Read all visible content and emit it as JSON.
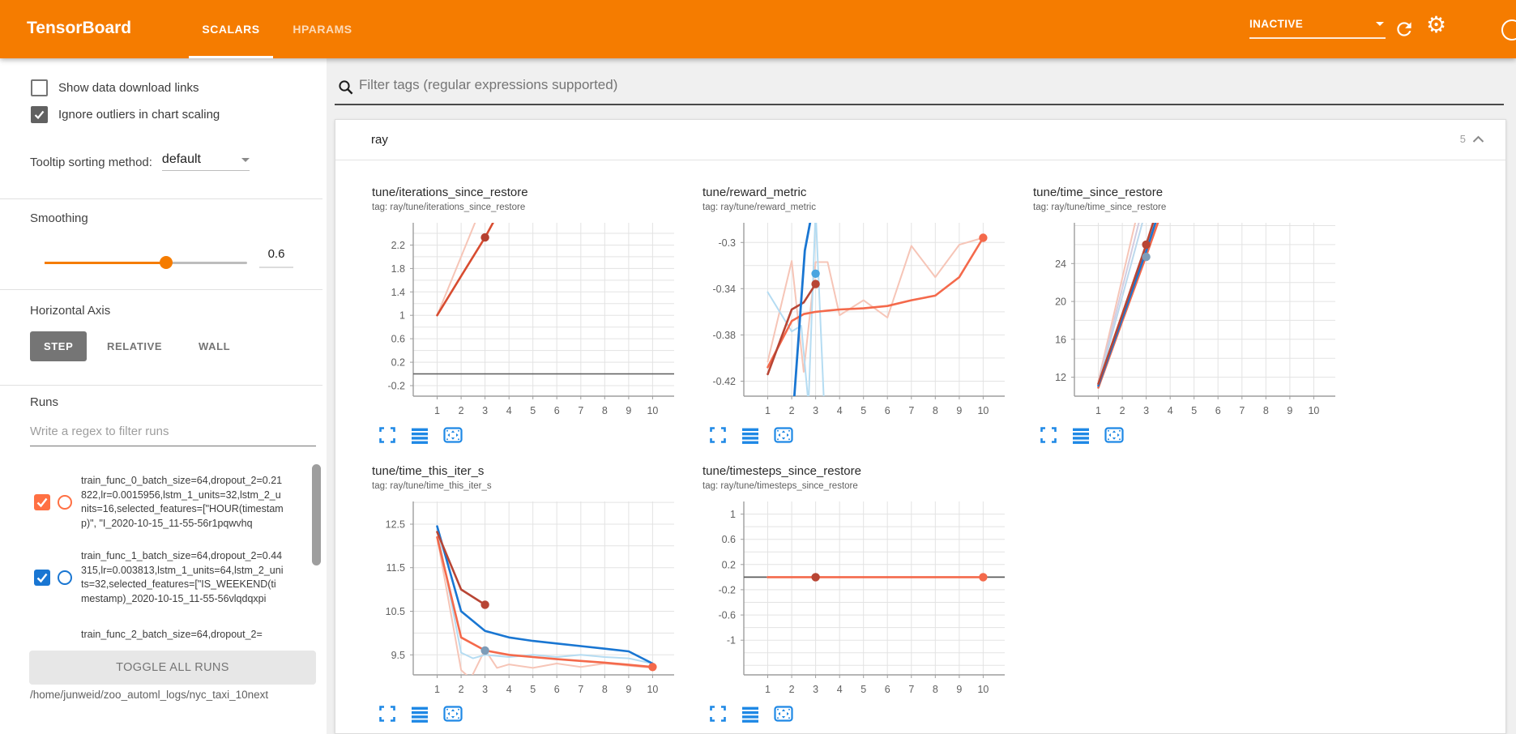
{
  "header": {
    "title": "TensorBoard",
    "tabs": [
      {
        "label": "SCALARS",
        "active": true
      },
      {
        "label": "HPARAMS",
        "active": false
      }
    ],
    "status": "INACTIVE"
  },
  "icons": {
    "gear": "⚙",
    "search": "magnifier-icon",
    "refresh": "circular-arrow-icon",
    "help": "question-circle-icon",
    "dropdown": "caret-down-icon",
    "collapse": "chevron-up-icon",
    "chart_toolbar": [
      "fullscreen-corners-icon",
      "horizontal-bars-icon",
      "fit-to-data-icon"
    ]
  },
  "colors": {
    "header_bg": "#f57c00",
    "accent_orange": "#f57c00",
    "run_orange": "#ff7043",
    "run_blue": "#1976d2",
    "toolbar_icon_blue": "#1e88e5",
    "step_button_bg": "#757575"
  },
  "sidebar": {
    "checkboxes": [
      {
        "label": "Show data download links",
        "checked": false
      },
      {
        "label": "Ignore outliers in chart scaling",
        "checked": true
      }
    ],
    "tooltip_sort": {
      "label": "Tooltip sorting method:",
      "value": "default"
    },
    "smoothing": {
      "label": "Smoothing",
      "value": "0.6"
    },
    "horizontal_axis": {
      "label": "Horizontal Axis",
      "options": [
        "STEP",
        "RELATIVE",
        "WALL"
      ],
      "selected": "STEP"
    },
    "runs": {
      "label": "Runs",
      "filter_placeholder": "Write a regex to filter runs",
      "items": [
        {
          "text": "train_func_0_batch_size=64,dropout_2=0.21822,lr=0.0015956,lstm_1_units=32,lstm_2_units=16,selected_features=[\"HOUR(timestamp)\", \"I_2020-10-15_11-55-56r1pqwvhq",
          "color": "#ff7043",
          "checked": true,
          "partial": false
        },
        {
          "text": "train_func_1_batch_size=64,dropout_2=0.44315,lr=0.003813,lstm_1_units=64,lstm_2_units=32,selected_features=[\"IS_WEEKEND(timestamp)_2020-10-15_11-55-56vlqdqxpi",
          "color": "#1976d2",
          "checked": true,
          "partial": false
        },
        {
          "text": "train_func_2_batch_size=64,dropout_2=",
          "color": "#e53935",
          "checked": true,
          "partial": true
        }
      ],
      "toggle_all": "TOGGLE ALL RUNS",
      "log_path": "/home/junweid/zoo_automl_logs/nyc_taxi_10next"
    }
  },
  "main": {
    "filter_placeholder": "Filter tags (regular expressions supported)",
    "group": {
      "name": "ray",
      "count": "5"
    }
  },
  "chart_data": [
    {
      "type": "line",
      "title": "tune/iterations_since_restore",
      "tag": "tag: ray/tune/iterations_since_restore",
      "xlim": [
        0,
        10.9
      ],
      "ylim": [
        -0.38,
        2.58
      ],
      "xticks": [
        "1",
        "2",
        "3",
        "4",
        "5",
        "6",
        "7",
        "8",
        "9",
        "10"
      ],
      "yticks": [
        "2.2",
        "1.8",
        "1.4",
        "1",
        "0.6",
        "0.2",
        "-0.2"
      ],
      "series": [
        {
          "name": "run0-unsmoothed",
          "color": "#f6c5b7",
          "width": 2,
          "points": [
            [
              1,
              1
            ],
            [
              2,
              2
            ],
            [
              3.2,
              3.2
            ]
          ]
        },
        {
          "name": "flat-zero-run",
          "color": "#5c5c5c",
          "width": 1.6,
          "points": [
            [
              0,
              0
            ],
            [
              10.9,
              0
            ]
          ]
        },
        {
          "name": "run2-smoothed",
          "color": "#d84c30",
          "width": 2.6,
          "points": [
            [
              1,
              1
            ],
            [
              2,
              1.67
            ],
            [
              3,
              2.33
            ],
            [
              3.4,
              2.63
            ]
          ]
        }
      ],
      "dots": [
        {
          "x": 3,
          "y": 2.33,
          "color": "#b54030"
        }
      ]
    },
    {
      "type": "line",
      "title": "tune/reward_metric",
      "tag": "tag: ray/tune/reward_metric",
      "xlim": [
        0,
        10.9
      ],
      "ylim": [
        -0.433,
        -0.283
      ],
      "xticks": [
        "1",
        "2",
        "3",
        "4",
        "5",
        "6",
        "7",
        "8",
        "9",
        "10"
      ],
      "yticks": [
        "-0.3",
        "-0.34",
        "-0.38",
        "-0.42"
      ],
      "series": [
        {
          "name": "orange-unsmoothed",
          "color": "#f6c5b7",
          "width": 2,
          "points": [
            [
              1,
              -0.403
            ],
            [
              2,
              -0.316
            ],
            [
              2.5,
              -0.412
            ],
            [
              3,
              -0.317
            ],
            [
              3.5,
              -0.317
            ],
            [
              4,
              -0.363
            ],
            [
              5,
              -0.35
            ],
            [
              6,
              -0.365
            ],
            [
              7,
              -0.303
            ],
            [
              8,
              -0.33
            ],
            [
              9,
              -0.302
            ],
            [
              10,
              -0.296
            ]
          ]
        },
        {
          "name": "blue-unsmoothed",
          "color": "#b5dcf2",
          "width": 2,
          "points": [
            [
              1,
              -0.343
            ],
            [
              2,
              -0.377
            ],
            [
              2.4,
              -0.372
            ],
            [
              2.7,
              -0.44
            ],
            [
              3,
              -0.272
            ],
            [
              3.35,
              -0.44
            ]
          ]
        },
        {
          "name": "orange-smoothed",
          "color": "#f4694b",
          "width": 2.6,
          "points": [
            [
              1,
              -0.408
            ],
            [
              1.5,
              -0.388
            ],
            [
              2,
              -0.368
            ],
            [
              2.5,
              -0.362
            ],
            [
              3,
              -0.36
            ],
            [
              4,
              -0.358
            ],
            [
              5,
              -0.357
            ],
            [
              6,
              -0.355
            ],
            [
              7,
              -0.35
            ],
            [
              8,
              -0.346
            ],
            [
              9,
              -0.33
            ],
            [
              10,
              -0.296
            ]
          ]
        },
        {
          "name": "red-smoothed",
          "color": "#b84534",
          "width": 2.6,
          "points": [
            [
              1,
              -0.414
            ],
            [
              2,
              -0.358
            ],
            [
              2.5,
              -0.352
            ],
            [
              3,
              -0.336
            ]
          ]
        },
        {
          "name": "blue-smoothed",
          "color": "#1976d2",
          "width": 2.8,
          "points": [
            [
              2.05,
              -0.45
            ],
            [
              2.55,
              -0.307
            ],
            [
              3.05,
              -0.252
            ]
          ]
        }
      ],
      "dots": [
        {
          "x": 3,
          "y": -0.327,
          "color": "#4aa5e0"
        },
        {
          "x": 3,
          "y": -0.336,
          "color": "#b84534"
        },
        {
          "x": 10,
          "y": -0.296,
          "color": "#f4694b"
        }
      ]
    },
    {
      "type": "line",
      "title": "tune/time_since_restore",
      "tag": "tag: ray/tune/time_since_restore",
      "xlim": [
        0,
        10.9
      ],
      "ylim": [
        10.0,
        28.3
      ],
      "xticks": [
        "1",
        "2",
        "3",
        "4",
        "5",
        "6",
        "7",
        "8",
        "9",
        "10"
      ],
      "yticks": [
        "24",
        "20",
        "16",
        "12"
      ],
      "series": [
        {
          "name": "pink-unsmoothed",
          "color": "#f6c5b7",
          "width": 2,
          "points": [
            [
              1,
              11.6
            ],
            [
              2.55,
              28.4
            ]
          ]
        },
        {
          "name": "lavender-unsmoothed",
          "color": "#d3cce0",
          "width": 2,
          "points": [
            [
              1,
              11.4
            ],
            [
              2.7,
              28.4
            ]
          ]
        },
        {
          "name": "lightblue-unsmoothed",
          "color": "#bcd8ec",
          "width": 2,
          "points": [
            [
              1,
              11.2
            ],
            [
              2.85,
              28.4
            ]
          ]
        },
        {
          "name": "orange-smoothed",
          "color": "#f4694b",
          "width": 2.6,
          "points": [
            [
              1,
              10.9
            ],
            [
              2,
              17.9
            ],
            [
              3,
              24.8
            ],
            [
              3.5,
              28.4
            ]
          ]
        },
        {
          "name": "blue-smoothed",
          "color": "#1976d2",
          "width": 2.6,
          "points": [
            [
              1,
              11.1
            ],
            [
              2,
              18.2
            ],
            [
              3,
              25.3
            ],
            [
              3.4,
              28.4
            ]
          ]
        },
        {
          "name": "red-smoothed",
          "color": "#b84534",
          "width": 2.6,
          "points": [
            [
              1,
              11.3
            ],
            [
              2,
              18.65
            ],
            [
              3,
              26.0
            ],
            [
              3.3,
              28.4
            ]
          ]
        }
      ],
      "dots": [
        {
          "x": 3,
          "y": 26.0,
          "color": "#b84534"
        },
        {
          "x": 3,
          "y": 24.7,
          "color": "#7d9cb8"
        }
      ]
    },
    {
      "type": "line",
      "title": "tune/time_this_iter_s",
      "tag": "tag: ray/tune/time_this_iter_s",
      "xlim": [
        0,
        10.9
      ],
      "ylim": [
        9.04,
        13.02
      ],
      "xticks": [
        "1",
        "2",
        "3",
        "4",
        "5",
        "6",
        "7",
        "8",
        "9",
        "10"
      ],
      "yticks": [
        "12.5",
        "11.5",
        "10.5",
        "9.5"
      ],
      "series": [
        {
          "name": "orange-unsmoothed",
          "color": "#f6c5b7",
          "width": 2,
          "points": [
            [
              1,
              12.2
            ],
            [
              2,
              9.15
            ],
            [
              2.4,
              8.95
            ],
            [
              3,
              9.62
            ],
            [
              3.5,
              9.2
            ],
            [
              4,
              9.28
            ],
            [
              5,
              9.2
            ],
            [
              6,
              9.3
            ],
            [
              7,
              9.22
            ],
            [
              8,
              9.3
            ],
            [
              9,
              9.25
            ],
            [
              10,
              9.2
            ]
          ]
        },
        {
          "name": "blue-unsmoothed",
          "color": "#b5dcf2",
          "width": 2,
          "points": [
            [
              1,
              12.38
            ],
            [
              2,
              9.55
            ],
            [
              2.5,
              9.42
            ],
            [
              3,
              9.5
            ],
            [
              4,
              9.45
            ],
            [
              5,
              9.5
            ],
            [
              6,
              9.45
            ],
            [
              7,
              9.5
            ],
            [
              8,
              9.45
            ],
            [
              9,
              9.42
            ],
            [
              10,
              9.3
            ]
          ]
        },
        {
          "name": "orange-smoothed",
          "color": "#f4694b",
          "width": 2.6,
          "points": [
            [
              1,
              12.2
            ],
            [
              2,
              9.9
            ],
            [
              3,
              9.6
            ],
            [
              4,
              9.5
            ],
            [
              5,
              9.45
            ],
            [
              6,
              9.4
            ],
            [
              7,
              9.36
            ],
            [
              8,
              9.32
            ],
            [
              9,
              9.27
            ],
            [
              10,
              9.22
            ]
          ]
        },
        {
          "name": "blue-smoothed",
          "color": "#1976d2",
          "width": 2.6,
          "points": [
            [
              1,
              12.45
            ],
            [
              2,
              10.5
            ],
            [
              3,
              10.05
            ],
            [
              4,
              9.9
            ],
            [
              5,
              9.82
            ],
            [
              6,
              9.76
            ],
            [
              7,
              9.7
            ],
            [
              8,
              9.64
            ],
            [
              9,
              9.58
            ],
            [
              10,
              9.3
            ]
          ]
        },
        {
          "name": "red-smoothed",
          "color": "#b84534",
          "width": 2.6,
          "points": [
            [
              1,
              12.32
            ],
            [
              2,
              11.0
            ],
            [
              3,
              10.65
            ]
          ]
        }
      ],
      "dots": [
        {
          "x": 3,
          "y": 10.65,
          "color": "#b84534"
        },
        {
          "x": 3,
          "y": 9.6,
          "color": "#7d9cb8"
        },
        {
          "x": 10,
          "y": 9.22,
          "color": "#f4694b"
        }
      ]
    },
    {
      "type": "line",
      "title": "tune/timesteps_since_restore",
      "tag": "tag: ray/tune/timesteps_since_restore",
      "xlim": [
        0,
        10.9
      ],
      "ylim": [
        -1.55,
        1.2
      ],
      "xticks": [
        "1",
        "2",
        "3",
        "4",
        "5",
        "6",
        "7",
        "8",
        "9",
        "10"
      ],
      "yticks": [
        "1",
        "0.6",
        "0.2",
        "-0.2",
        "-0.6",
        "-1"
      ],
      "series": [
        {
          "name": "flat-zero-run",
          "color": "#5c5c5c",
          "width": 1.8,
          "points": [
            [
              0,
              0
            ],
            [
              10.9,
              0
            ]
          ]
        },
        {
          "name": "orange-smoothed",
          "color": "#f4694b",
          "width": 2.6,
          "points": [
            [
              1,
              0
            ],
            [
              10,
              0
            ]
          ]
        }
      ],
      "dots": [
        {
          "x": 3,
          "y": 0,
          "color": "#b84534"
        },
        {
          "x": 10,
          "y": 0,
          "color": "#f4694b"
        }
      ]
    }
  ]
}
